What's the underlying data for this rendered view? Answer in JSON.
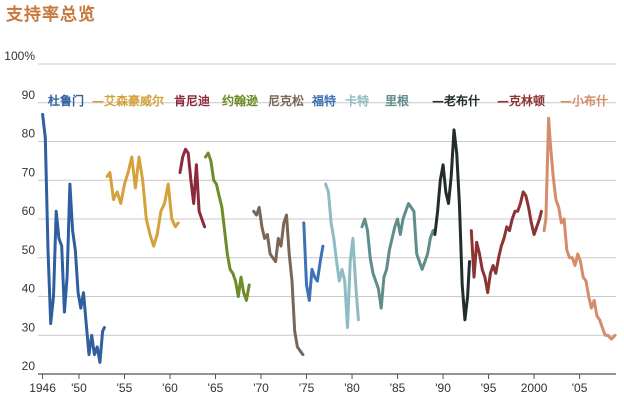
{
  "chart_data": {
    "type": "line",
    "title": "支持率总览",
    "xlabel": "",
    "ylabel": "",
    "xlim": [
      1945.5,
      2009
    ],
    "ylim": [
      20,
      100
    ],
    "y_ticks": [
      20,
      30,
      40,
      50,
      60,
      70,
      80,
      90,
      100
    ],
    "y_tick_labels": [
      "20",
      "30",
      "40",
      "50",
      "60",
      "70",
      "80",
      "90",
      "100%"
    ],
    "x_ticks": [
      1946,
      1950,
      1955,
      1960,
      1965,
      1970,
      1975,
      1980,
      1985,
      1990,
      1995,
      2000,
      2005
    ],
    "x_tick_labels": [
      "1946",
      "'50",
      "'55",
      "'60",
      "'65",
      "'70",
      "'75",
      "'80",
      "'85",
      "'90",
      "'95",
      "2000",
      "'05"
    ],
    "grid": true,
    "legend": "top",
    "series": [
      {
        "name": "杜鲁门",
        "color": "#2f5f9e",
        "x": [
          1946.0,
          1946.3,
          1946.6,
          1946.9,
          1947.2,
          1947.5,
          1947.8,
          1948.1,
          1948.4,
          1948.7,
          1949.0,
          1949.3,
          1949.6,
          1949.9,
          1950.2,
          1950.5,
          1950.8,
          1951.1,
          1951.4,
          1951.7,
          1952.0,
          1952.3,
          1952.6,
          1952.8
        ],
        "values": [
          87,
          81,
          52,
          33,
          40,
          62,
          55,
          53,
          36,
          45,
          69,
          57,
          52,
          41,
          37,
          41,
          33,
          25,
          30,
          25,
          27,
          23,
          31,
          32
        ]
      },
      {
        "name": "艾森豪威尔",
        "color": "#d4a23c",
        "x": [
          1953.1,
          1953.4,
          1953.8,
          1954.2,
          1954.6,
          1955.0,
          1955.4,
          1955.8,
          1956.2,
          1956.6,
          1957.0,
          1957.4,
          1957.8,
          1958.2,
          1958.6,
          1959.0,
          1959.4,
          1959.8,
          1960.2,
          1960.6,
          1960.9
        ],
        "values": [
          71,
          72,
          65,
          67,
          64,
          69,
          72,
          76,
          68,
          76,
          70,
          60,
          56,
          53,
          56,
          62,
          64,
          69,
          60,
          58,
          59
        ]
      },
      {
        "name": "肯尼迪",
        "color": "#8c2a3c",
        "x": [
          1961.1,
          1961.4,
          1961.7,
          1962.0,
          1962.3,
          1962.6,
          1962.9,
          1963.2,
          1963.5,
          1963.8
        ],
        "values": [
          72,
          76,
          78,
          77,
          70,
          64,
          74,
          62,
          60,
          58
        ]
      },
      {
        "name": "约翰逊",
        "color": "#6e8c2a",
        "x": [
          1963.9,
          1964.2,
          1964.5,
          1964.8,
          1965.1,
          1965.4,
          1965.7,
          1966.0,
          1966.3,
          1966.6,
          1966.9,
          1967.2,
          1967.5,
          1967.8,
          1968.1,
          1968.4,
          1968.7
        ],
        "values": [
          76,
          77,
          75,
          70,
          69,
          66,
          63,
          57,
          51,
          47,
          46,
          44,
          40,
          45,
          41,
          39,
          43
        ]
      },
      {
        "name": "尼克松",
        "color": "#7a6656",
        "x": [
          1969.2,
          1969.5,
          1969.8,
          1970.1,
          1970.4,
          1970.7,
          1971.0,
          1971.3,
          1971.6,
          1971.9,
          1972.2,
          1972.5,
          1972.8,
          1973.1,
          1973.4,
          1973.7,
          1974.0,
          1974.3,
          1974.6
        ],
        "values": [
          62,
          61,
          63,
          58,
          55,
          56,
          51,
          50,
          49,
          55,
          53,
          59,
          61,
          51,
          44,
          31,
          27,
          26,
          25
        ]
      },
      {
        "name": "福特",
        "color": "#3e72b4",
        "x": [
          1974.7,
          1975.0,
          1975.3,
          1975.6,
          1975.9,
          1976.2,
          1976.5,
          1976.8
        ],
        "values": [
          59,
          43,
          39,
          47,
          45,
          44,
          49,
          53
        ]
      },
      {
        "name": "卡特",
        "color": "#8dbcc2",
        "x": [
          1977.1,
          1977.4,
          1977.7,
          1978.0,
          1978.3,
          1978.6,
          1978.9,
          1979.2,
          1979.5,
          1979.8,
          1980.1,
          1980.4,
          1980.7
        ],
        "values": [
          69,
          67,
          59,
          55,
          49,
          44,
          47,
          44,
          32,
          49,
          55,
          43,
          34
        ]
      },
      {
        "name": "里根",
        "color": "#5f8c8c",
        "x": [
          1981.1,
          1981.4,
          1981.7,
          1982.0,
          1982.3,
          1982.6,
          1982.9,
          1983.2,
          1983.5,
          1983.8,
          1984.1,
          1984.4,
          1984.7,
          1985.0,
          1985.3,
          1985.6,
          1985.9,
          1986.2,
          1986.5,
          1986.8,
          1987.1,
          1987.4,
          1987.7,
          1988.0,
          1988.3,
          1988.6,
          1988.9
        ],
        "values": [
          58,
          60,
          57,
          50,
          46,
          44,
          42,
          37,
          45,
          47,
          52,
          55,
          58,
          60,
          56,
          60,
          62,
          64,
          63,
          62,
          51,
          49,
          47,
          49,
          51,
          55,
          57
        ]
      },
      {
        "name": "老布什",
        "color": "#232d2d",
        "x": [
          1989.1,
          1989.4,
          1989.7,
          1990.0,
          1990.3,
          1990.6,
          1990.9,
          1991.2,
          1991.5,
          1991.8,
          1992.1,
          1992.4,
          1992.7,
          1992.9
        ],
        "values": [
          56,
          62,
          70,
          74,
          67,
          64,
          71,
          83,
          77,
          64,
          43,
          34,
          40,
          49
        ]
      },
      {
        "name": "克林顿",
        "color": "#8c3434",
        "x": [
          1993.1,
          1993.4,
          1993.7,
          1994.0,
          1994.3,
          1994.6,
          1994.9,
          1995.2,
          1995.5,
          1995.8,
          1996.1,
          1996.4,
          1996.7,
          1997.0,
          1997.3,
          1997.6,
          1997.9,
          1998.2,
          1998.5,
          1998.8,
          1999.1,
          1999.4,
          1999.7,
          2000.0,
          2000.3,
          2000.6,
          2000.8
        ],
        "values": [
          57,
          45,
          54,
          51,
          47,
          45,
          41,
          46,
          48,
          46,
          50,
          53,
          55,
          58,
          57,
          60,
          62,
          62,
          64,
          67,
          66,
          63,
          59,
          56,
          58,
          60,
          62
        ]
      },
      {
        "name": "小布什",
        "color": "#d48c6a",
        "x": [
          2001.1,
          2001.3,
          2001.6,
          2001.8,
          2002.1,
          2002.4,
          2002.7,
          2003.0,
          2003.3,
          2003.6,
          2003.9,
          2004.2,
          2004.5,
          2004.8,
          2005.1,
          2005.4,
          2005.7,
          2006.0,
          2006.3,
          2006.6,
          2006.9,
          2007.2,
          2007.5,
          2007.8,
          2008.1,
          2008.5,
          2008.9
        ],
        "values": [
          57,
          60,
          86,
          79,
          71,
          65,
          63,
          59,
          60,
          52,
          50,
          50,
          48,
          51,
          49,
          45,
          44,
          40,
          37,
          39,
          35,
          34,
          32,
          30,
          30,
          29,
          30
        ]
      }
    ],
    "legend_separator": "—"
  }
}
